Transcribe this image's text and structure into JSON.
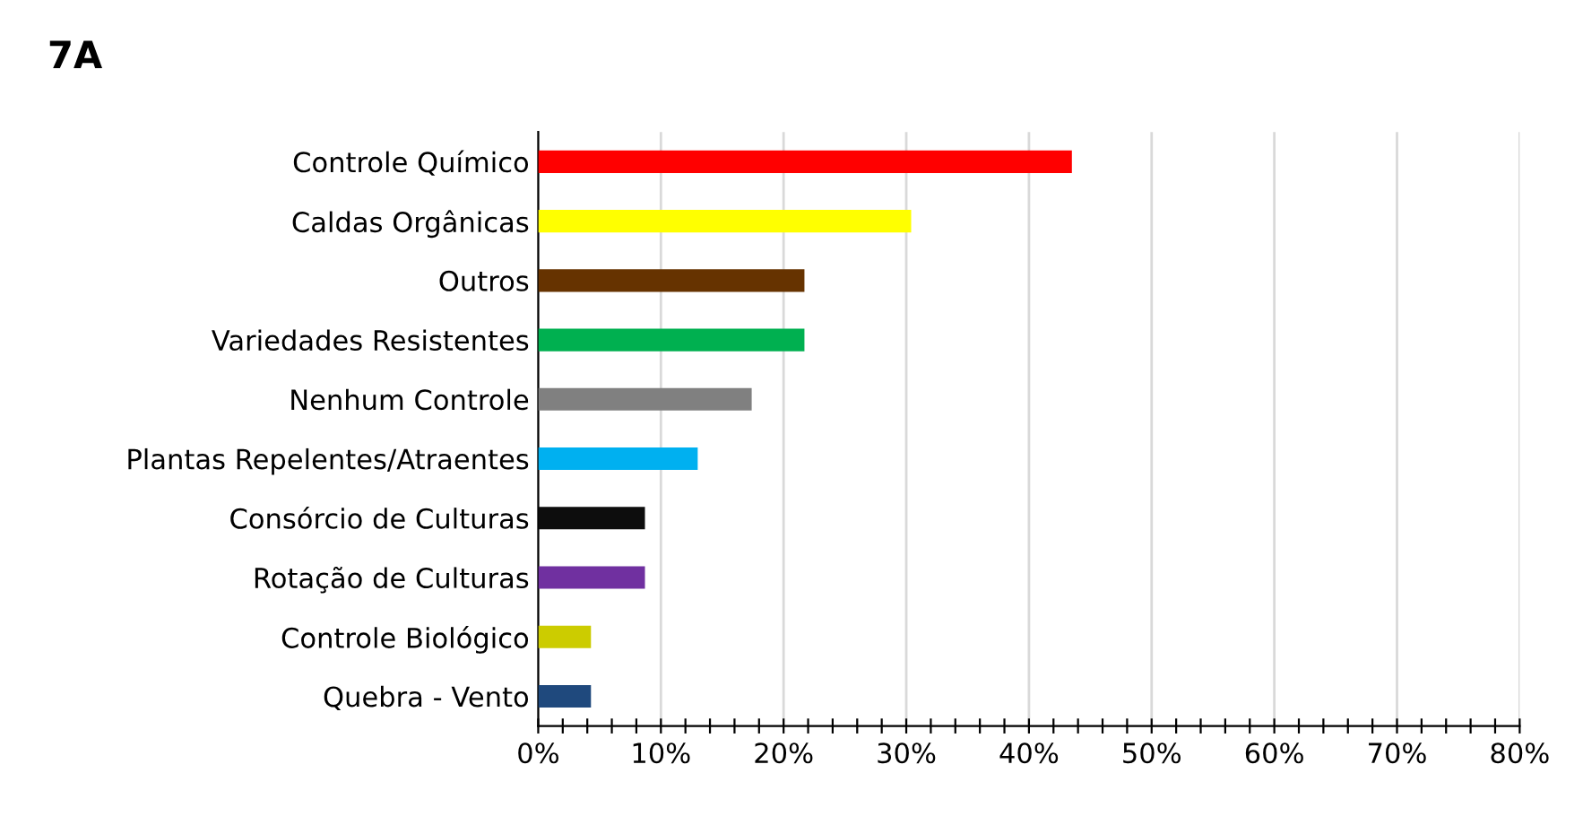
{
  "chart_data": {
    "type": "bar",
    "orientation": "horizontal",
    "title": "7A",
    "categories": [
      "Controle Químico",
      "Caldas Orgânicas",
      "Outros",
      "Variedades Resistentes",
      "Nenhum Controle",
      "Plantas Repelentes/Atraentes",
      "Consórcio de Culturas",
      "Rotação de Culturas",
      "Controle Biológico",
      "Quebra - Vento"
    ],
    "values": [
      43.5,
      30.4,
      21.7,
      21.7,
      17.4,
      13.0,
      8.7,
      8.7,
      4.3,
      4.3
    ],
    "colors": [
      "#ff0000",
      "#ffff00",
      "#663300",
      "#00b050",
      "#808080",
      "#00b0f0",
      "#0d0d0d",
      "#7030a0",
      "#cccc00",
      "#1f497d"
    ],
    "xlim": [
      0,
      80
    ],
    "xticks": [
      {
        "value": 0,
        "label": "0%"
      },
      {
        "value": 2,
        "label": null
      },
      {
        "value": 4,
        "label": null
      },
      {
        "value": 6,
        "label": null
      },
      {
        "value": 8,
        "label": null
      },
      {
        "value": 10,
        "label": "10%"
      },
      {
        "value": 12,
        "label": null
      },
      {
        "value": 14,
        "label": null
      },
      {
        "value": 16,
        "label": null
      },
      {
        "value": 18,
        "label": null
      },
      {
        "value": 20,
        "label": "20%"
      },
      {
        "value": 22,
        "label": null
      },
      {
        "value": 24,
        "label": null
      },
      {
        "value": 26,
        "label": null
      },
      {
        "value": 28,
        "label": null
      },
      {
        "value": 30,
        "label": "30%"
      },
      {
        "value": 32,
        "label": null
      },
      {
        "value": 34,
        "label": null
      },
      {
        "value": 36,
        "label": null
      },
      {
        "value": 38,
        "label": null
      },
      {
        "value": 40,
        "label": "40%"
      },
      {
        "value": 42,
        "label": null
      },
      {
        "value": 44,
        "label": null
      },
      {
        "value": 46,
        "label": null
      },
      {
        "value": 48,
        "label": null
      },
      {
        "value": 50,
        "label": "50%"
      },
      {
        "value": 52,
        "label": null
      },
      {
        "value": 54,
        "label": null
      },
      {
        "value": 56,
        "label": null
      },
      {
        "value": 58,
        "label": null
      },
      {
        "value": 60,
        "label": "60%"
      },
      {
        "value": 62,
        "label": null
      },
      {
        "value": 64,
        "label": null
      },
      {
        "value": 66,
        "label": null
      },
      {
        "value": 68,
        "label": null
      },
      {
        "value": 70,
        "label": "70%"
      },
      {
        "value": 72,
        "label": null
      },
      {
        "value": 74,
        "label": null
      },
      {
        "value": 76,
        "label": null
      },
      {
        "value": 78,
        "label": null
      },
      {
        "value": 80,
        "label": "80%"
      }
    ],
    "grid": "x"
  }
}
